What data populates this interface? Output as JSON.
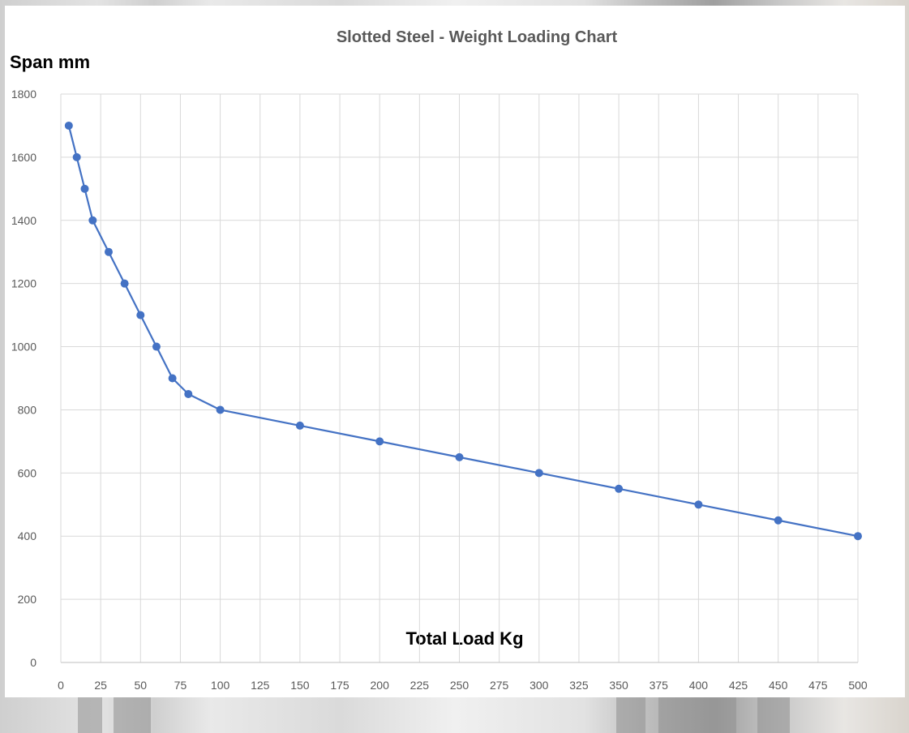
{
  "chart_data": {
    "type": "line",
    "title": "Slotted Steel - Weight Loading Chart",
    "ylabel": "Span mm",
    "xlabel": "Total Load Kg",
    "xlim": [
      0,
      500
    ],
    "ylim": [
      0,
      1800
    ],
    "x_ticks": [
      "0",
      "25",
      "50",
      "75",
      "100",
      "125",
      "150",
      "175",
      "200",
      "225",
      "250",
      "275",
      "300",
      "325",
      "350",
      "375",
      "400",
      "425",
      "450",
      "475",
      "500"
    ],
    "y_ticks": [
      "0",
      "200",
      "400",
      "600",
      "800",
      "1000",
      "1200",
      "1400",
      "1600",
      "1800"
    ],
    "grid": true,
    "legend": "none",
    "series": [
      {
        "color": "#4472c4",
        "points": [
          [
            5,
            1700
          ],
          [
            10,
            1600
          ],
          [
            15,
            1500
          ],
          [
            20,
            1400
          ],
          [
            30,
            1300
          ],
          [
            40,
            1200
          ],
          [
            50,
            1100
          ],
          [
            60,
            1000
          ],
          [
            70,
            900
          ],
          [
            80,
            850
          ],
          [
            100,
            800
          ],
          [
            150,
            750
          ],
          [
            200,
            700
          ],
          [
            250,
            650
          ],
          [
            300,
            600
          ],
          [
            350,
            550
          ],
          [
            400,
            500
          ],
          [
            450,
            450
          ],
          [
            500,
            400
          ]
        ]
      }
    ]
  }
}
